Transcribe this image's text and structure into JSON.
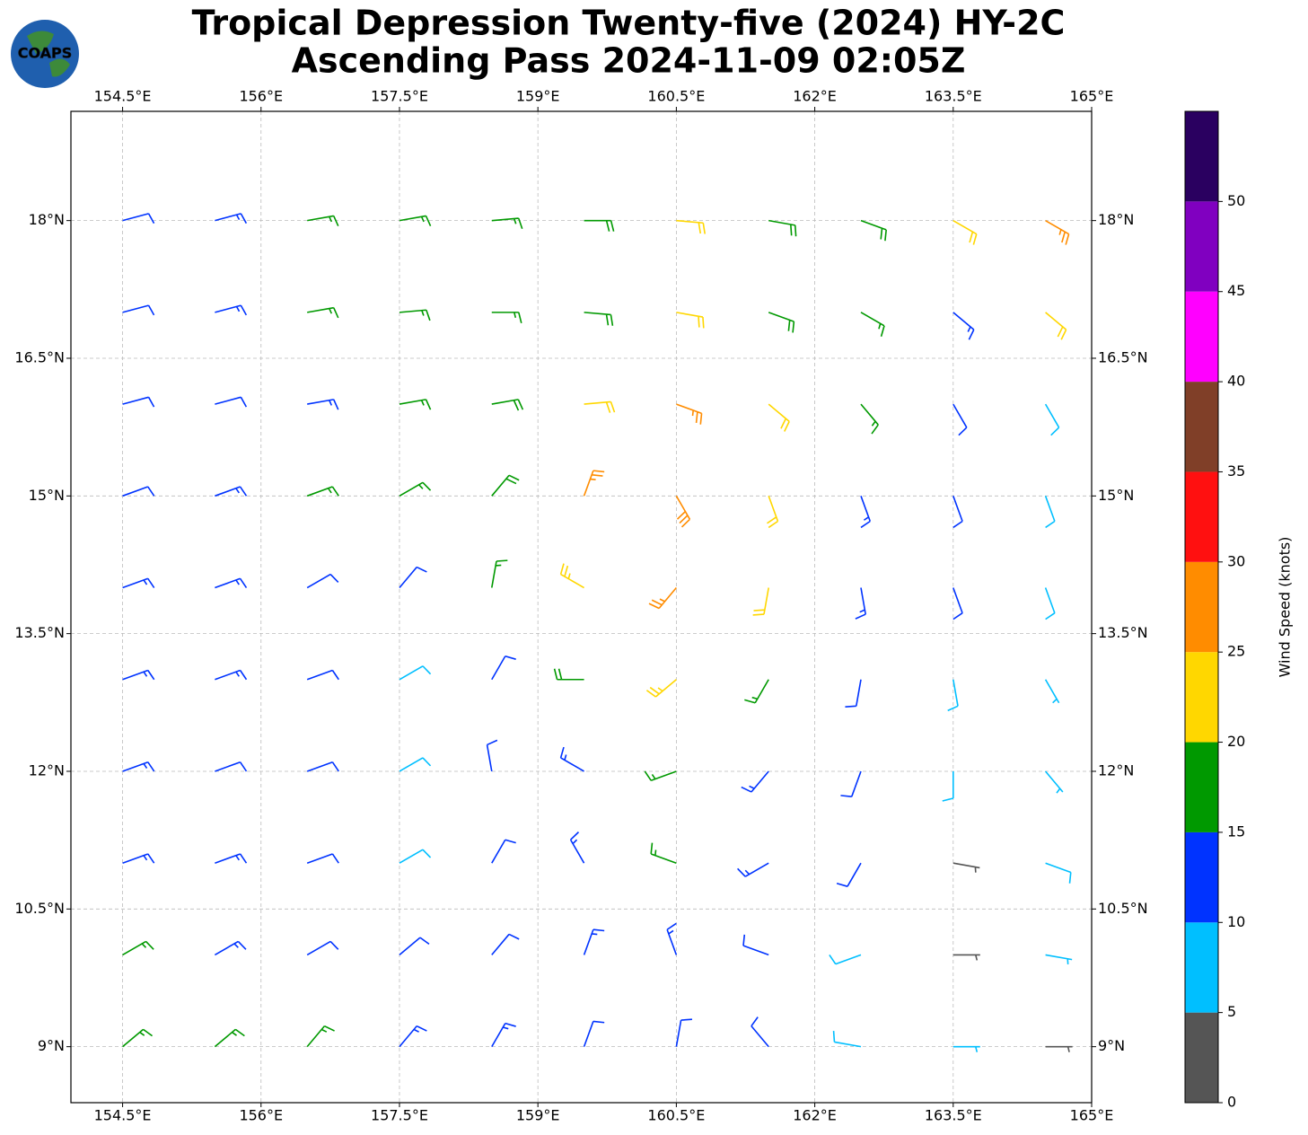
{
  "chart_data": {
    "type": "barbs",
    "title_lines": [
      "Tropical Depression Twenty-five (2024) HY-2C",
      "Ascending Pass 2024-11-09 02:05Z"
    ],
    "logo": "COAPS",
    "xlim": [
      153.94,
      165.0
    ],
    "ylim": [
      8.39,
      19.19
    ],
    "xticks": [
      {
        "value": 154.5,
        "label": "154.5°E"
      },
      {
        "value": 156,
        "label": "156°E"
      },
      {
        "value": 157.5,
        "label": "157.5°E"
      },
      {
        "value": 159,
        "label": "159°E"
      },
      {
        "value": 160.5,
        "label": "160.5°E"
      },
      {
        "value": 162,
        "label": "162°E"
      },
      {
        "value": 163.5,
        "label": "163.5°E"
      },
      {
        "value": 165,
        "label": "165°E"
      }
    ],
    "yticks": [
      {
        "value": 9,
        "label": "9°N"
      },
      {
        "value": 10.5,
        "label": "10.5°N"
      },
      {
        "value": 12,
        "label": "12°N"
      },
      {
        "value": 13.5,
        "label": "13.5°N"
      },
      {
        "value": 15,
        "label": "15°N"
      },
      {
        "value": 16.5,
        "label": "16.5°N"
      },
      {
        "value": 18,
        "label": "18°N"
      }
    ],
    "grid": true,
    "barbs": {
      "lons": [
        154.5,
        155.5,
        156.5,
        157.5,
        158.5,
        159.5,
        160.5,
        161.5,
        162.5,
        163.5,
        164.5
      ],
      "lats": [
        18,
        17,
        16,
        15,
        14,
        13,
        12,
        11,
        10,
        9
      ],
      "speed": [
        [
          12,
          13,
          16,
          17,
          17,
          18,
          21,
          18,
          18,
          22,
          25
        ],
        [
          12,
          13,
          15,
          16,
          17,
          19,
          21,
          18,
          16,
          13,
          20
        ],
        [
          12,
          12,
          14,
          16,
          18,
          22,
          27,
          22,
          17,
          10,
          8
        ],
        [
          12,
          13,
          15,
          17,
          19,
          25,
          28,
          22,
          14,
          11,
          8
        ],
        [
          13,
          13,
          12,
          12,
          15,
          24,
          27,
          22,
          14,
          10,
          8
        ],
        [
          14,
          13,
          11,
          8,
          11,
          18,
          23,
          17,
          12,
          9,
          5
        ],
        [
          13,
          12,
          10,
          9,
          11,
          14,
          16,
          14,
          11,
          8,
          7
        ],
        [
          14,
          13,
          11,
          9,
          12,
          14,
          16,
          13,
          10,
          4,
          8
        ],
        [
          16,
          14,
          12,
          11,
          12,
          13,
          14,
          12,
          9,
          3,
          7
        ],
        [
          17,
          16,
          15,
          13,
          13,
          12,
          11,
          10,
          8,
          5,
          4
        ]
      ],
      "direction": [
        [
          75,
          75,
          80,
          80,
          85,
          90,
          95,
          100,
          110,
          120,
          120
        ],
        [
          75,
          75,
          80,
          85,
          90,
          95,
          100,
          110,
          120,
          130,
          130
        ],
        [
          75,
          75,
          80,
          80,
          80,
          85,
          110,
          130,
          140,
          150,
          150
        ],
        [
          70,
          70,
          70,
          60,
          40,
          20,
          150,
          160,
          160,
          160,
          160
        ],
        [
          70,
          70,
          60,
          40,
          10,
          300,
          220,
          190,
          170,
          160,
          160
        ],
        [
          70,
          70,
          70,
          60,
          30,
          270,
          230,
          210,
          190,
          170,
          150
        ],
        [
          70,
          70,
          70,
          60,
          350,
          300,
          250,
          220,
          200,
          180,
          140
        ],
        [
          70,
          70,
          70,
          60,
          30,
          330,
          290,
          240,
          210,
          100,
          110
        ],
        [
          60,
          60,
          60,
          50,
          40,
          20,
          340,
          290,
          250,
          90,
          100
        ],
        [
          50,
          50,
          40,
          40,
          30,
          20,
          10,
          320,
          280,
          90,
          90
        ]
      ]
    },
    "colorbar": {
      "label": "Wind Speed (knots)",
      "lim": [
        0,
        55
      ],
      "bounds": [
        0,
        5,
        10,
        15,
        20,
        25,
        30,
        35,
        40,
        45,
        50,
        55
      ],
      "colors": [
        "#555555",
        "#00bfff",
        "#0033ff",
        "#009900",
        "#ffd700",
        "#ff8c00",
        "#ff1010",
        "#803f28",
        "#ff00ff",
        "#8000c0",
        "#2a0060"
      ],
      "ticks": [
        0,
        5,
        10,
        15,
        20,
        25,
        30,
        35,
        40,
        45,
        50
      ]
    }
  }
}
